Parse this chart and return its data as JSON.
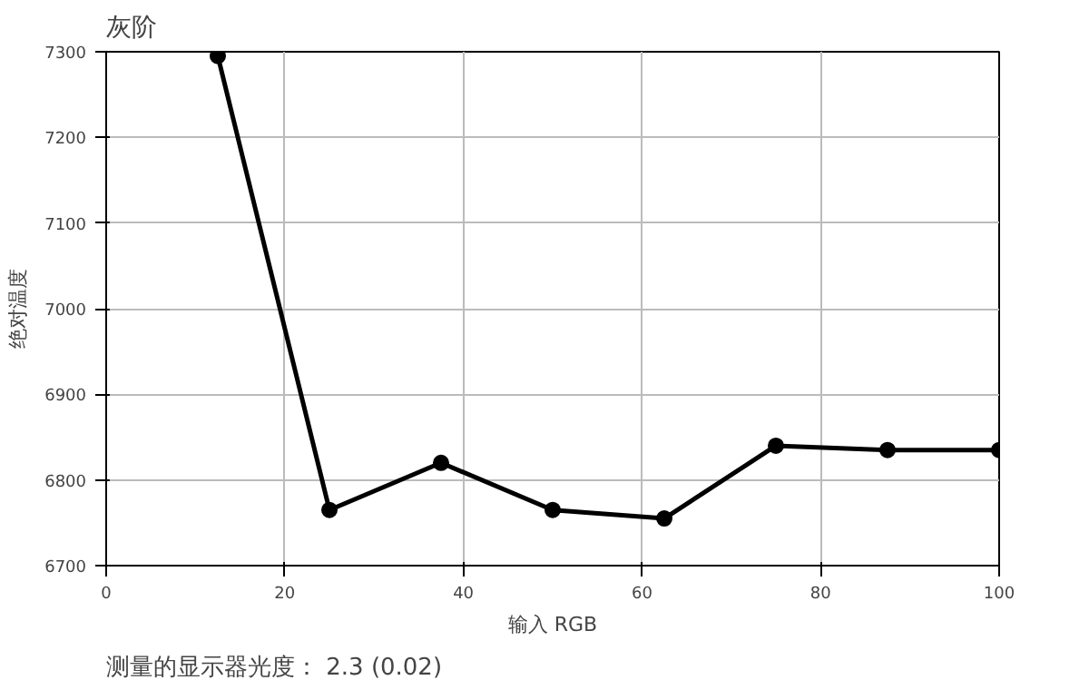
{
  "chart_data": {
    "type": "line",
    "title": "灰阶",
    "xlabel": "输入 RGB",
    "ylabel": "绝对温度",
    "x": [
      12.5,
      25,
      37.5,
      50,
      62.5,
      75,
      87.5,
      100
    ],
    "series": [
      {
        "color": "#000000",
        "values": [
          7295,
          6765,
          6820,
          6765,
          6755,
          6840,
          6835,
          6835
        ]
      }
    ],
    "xlim": [
      0,
      100
    ],
    "xticks": [
      0,
      20,
      40,
      60,
      80,
      100
    ],
    "ylim": [
      6700,
      7300
    ],
    "yticks": [
      6700,
      6800,
      6900,
      7000,
      7100,
      7200,
      7300
    ],
    "grid": true,
    "marker": "circle",
    "line_style": "solid",
    "annotations": [
      "测量的显示器光度： 2.3 (0.02)"
    ]
  }
}
